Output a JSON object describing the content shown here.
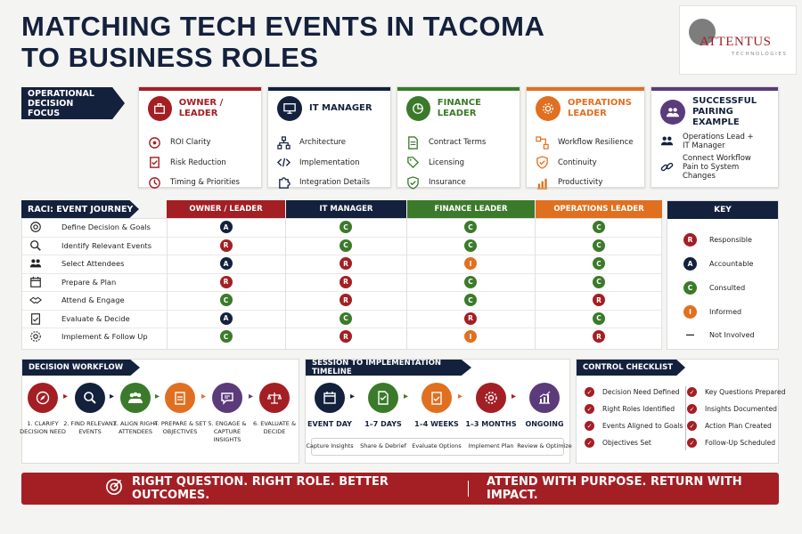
{
  "title_line1": "MATCHING TECH EVENTS IN TACOMA",
  "title_line2": "TO BUSINESS ROLES",
  "logo": {
    "word": "ATTENTUS",
    "sub": "TECHNOLOGIES"
  },
  "focus_banner": "OPERATIONAL DECISION FOCUS",
  "roles": [
    {
      "title": "OWNER / LEADER",
      "color": "#a31f24",
      "icon": "briefcase-icon",
      "items": [
        "ROI Clarity",
        "Risk Reduction",
        "Timing & Priorities"
      ]
    },
    {
      "title": "IT MANAGER",
      "color": "#14213d",
      "icon": "monitor-icon",
      "items": [
        "Architecture",
        "Implementation",
        "Integration Details"
      ]
    },
    {
      "title": "FINANCE LEADER",
      "color": "#3b7a2a",
      "icon": "pie-chart-icon",
      "items": [
        "Contract Terms",
        "Licensing",
        "Insurance"
      ]
    },
    {
      "title": "OPERATIONS LEADER",
      "color": "#e07020",
      "icon": "gear-icon",
      "items": [
        "Workflow Resilience",
        "Continuity",
        "Productivity"
      ]
    },
    {
      "title": "SUCCESSFUL PAIRING EXAMPLE",
      "color": "#5b3b7a",
      "icon": "team-icon",
      "items": [
        "Operations Lead + IT Manager",
        "Connect Workflow Pain to System Changes"
      ]
    }
  ],
  "raci": {
    "header": "RACI: EVENT JOURNEY",
    "columns": [
      "OWNER / LEADER",
      "IT MANAGER",
      "FINANCE LEADER",
      "OPERATIONS LEADER"
    ],
    "rows": [
      {
        "label": "Define Decision & Goals",
        "cells": [
          "A",
          "C",
          "C",
          "C"
        ]
      },
      {
        "label": "Identify Relevant Events",
        "cells": [
          "R",
          "C",
          "C",
          "C"
        ]
      },
      {
        "label": "Select Attendees",
        "cells": [
          "A",
          "R",
          "I",
          "C"
        ]
      },
      {
        "label": "Prepare & Plan",
        "cells": [
          "R",
          "R",
          "C",
          "C"
        ]
      },
      {
        "label": "Attend & Engage",
        "cells": [
          "C",
          "R",
          "C",
          "R"
        ]
      },
      {
        "label": "Evaluate & Decide",
        "cells": [
          "A",
          "C",
          "R",
          "C"
        ]
      },
      {
        "label": "Implement & Follow Up",
        "cells": [
          "C",
          "R",
          "I",
          "R"
        ]
      }
    ]
  },
  "key": {
    "header": "KEY",
    "items": [
      {
        "code": "R",
        "label": "Responsible"
      },
      {
        "code": "A",
        "label": "Accountable"
      },
      {
        "code": "C",
        "label": "Consulted"
      },
      {
        "code": "I",
        "label": "Informed"
      },
      {
        "code": "—",
        "label": "Not Involved"
      }
    ]
  },
  "badge_colors": {
    "R": "#a31f24",
    "A": "#14213d",
    "C": "#3b7a2a",
    "I": "#e07020"
  },
  "workflow": {
    "header": "DECISION WORKFLOW",
    "steps": [
      {
        "label": "1. CLARIFY DECISION NEED",
        "color": "#a31f24",
        "icon": "compass-icon"
      },
      {
        "label": "2. FIND RELEVANT EVENTS",
        "color": "#14213d",
        "icon": "search-icon"
      },
      {
        "label": "3. ALIGN RIGHT ATTENDEES",
        "color": "#3b7a2a",
        "icon": "team-icon"
      },
      {
        "label": "4. PREPARE & SET OBJECTIVES",
        "color": "#e07020",
        "icon": "clipboard-icon"
      },
      {
        "label": "5. ENGAGE & CAPTURE INSIGHTS",
        "color": "#5b3b7a",
        "icon": "chat-icon"
      },
      {
        "label": "6. EVALUATE & DECIDE",
        "color": "#a31f24",
        "icon": "scale-icon"
      }
    ]
  },
  "timeline": {
    "header": "SESSION TO IMPLEMENTATION TIMELINE",
    "steps": [
      {
        "label": "EVENT DAY",
        "sub": "Capture Insights",
        "color": "#14213d",
        "icon": "calendar-icon"
      },
      {
        "label": "1–7 DAYS",
        "sub": "Share & Debrief",
        "color": "#3b7a2a",
        "icon": "document-icon"
      },
      {
        "label": "1–4 WEEKS",
        "sub": "Evaluate Options",
        "color": "#e07020",
        "icon": "clipboard-icon"
      },
      {
        "label": "1–3 MONTHS",
        "sub": "Implement Plan",
        "color": "#a31f24",
        "icon": "gear-icon"
      },
      {
        "label": "ONGOING",
        "sub": "Review & Optimize",
        "color": "#5b3b7a",
        "icon": "growth-chart-icon"
      }
    ]
  },
  "checklist": {
    "header": "CONTROL CHECKLIST",
    "left": [
      "Decision Need Defined",
      "Right Roles Identified",
      "Events Aligned to Goals",
      "Objectives Set"
    ],
    "right": [
      "Key Questions Prepared",
      "Insights Documented",
      "Action Plan Created",
      "Follow-Up Scheduled"
    ]
  },
  "footer": {
    "left": "RIGHT QUESTION. RIGHT ROLE. BETTER OUTCOMES.",
    "right": "ATTEND WITH PURPOSE. RETURN WITH IMPACT."
  }
}
